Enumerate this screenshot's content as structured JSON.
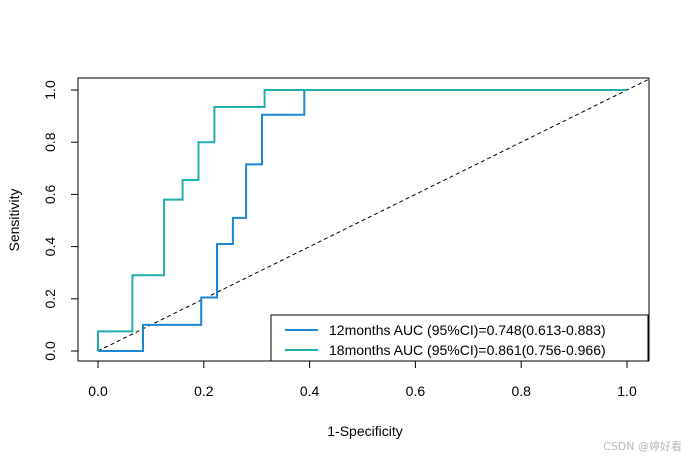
{
  "chart_data": {
    "type": "line",
    "title": "",
    "xlabel": "1-Specificity",
    "ylabel": "Sensitivity",
    "xlim": [
      0,
      1
    ],
    "ylim": [
      0,
      1
    ],
    "x_ticks": [
      "0.0",
      "0.2",
      "0.4",
      "0.6",
      "0.8",
      "1.0"
    ],
    "y_ticks": [
      "0.0",
      "0.2",
      "0.4",
      "0.6",
      "0.8",
      "1.0"
    ],
    "grid": false,
    "legend_position": "bottom-right",
    "reference_line": {
      "x": [
        0,
        1
      ],
      "y": [
        0,
        1
      ],
      "style": "dashed",
      "color": "#000000"
    },
    "series": [
      {
        "name": "12months AUC (95%CI)=0.748(0.613-0.883)",
        "color": "#1f86d6",
        "x": [
          0,
          0,
          0.085,
          0.085,
          0.195,
          0.195,
          0.225,
          0.225,
          0.255,
          0.255,
          0.28,
          0.28,
          0.31,
          0.31,
          0.39,
          0.39,
          1
        ],
        "y": [
          0,
          0,
          0,
          0.1,
          0.1,
          0.205,
          0.205,
          0.41,
          0.41,
          0.51,
          0.51,
          0.715,
          0.715,
          0.905,
          0.905,
          1,
          1
        ]
      },
      {
        "name": "18months AUC (95%CI)=0.861(0.756-0.966)",
        "color": "#1fb0ae",
        "x": [
          0,
          0,
          0.065,
          0.065,
          0.125,
          0.125,
          0.16,
          0.16,
          0.19,
          0.19,
          0.22,
          0.22,
          0.315,
          0.315,
          1
        ],
        "y": [
          0,
          0.075,
          0.075,
          0.29,
          0.29,
          0.58,
          0.58,
          0.655,
          0.655,
          0.8,
          0.8,
          0.935,
          0.935,
          1,
          1
        ]
      }
    ]
  },
  "watermark": "CSDN @婷好看"
}
